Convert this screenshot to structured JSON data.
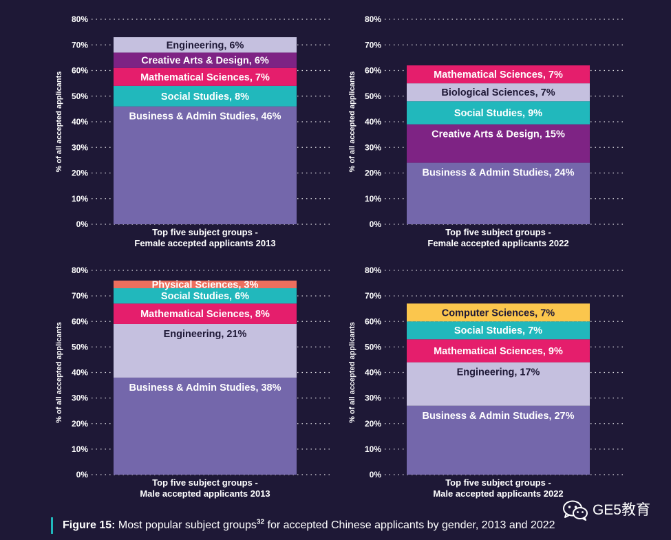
{
  "colors": {
    "background": "#1e1836",
    "business": "#7467ab",
    "engineering": "#c5c0df",
    "creative": "#7e2384",
    "mathematical": "#e51e6c",
    "social": "#21b8bc",
    "biological": "#c5c0df",
    "physical": "#ec6f5e",
    "computer": "#fbc64d",
    "text_light": "#ffffff",
    "text_dark": "#1e1836",
    "caption_bar": "#21b8bc"
  },
  "chart_data": [
    {
      "type": "bar",
      "stacked": true,
      "title": "Top five subject groups -",
      "subtitle": "Female accepted applicants 2013",
      "ylabel": "% of all accepted applicants",
      "ylim": [
        0,
        80
      ],
      "yticks": [
        "0%",
        "10%",
        "20%",
        "30%",
        "40%",
        "50%",
        "60%",
        "70%",
        "80%"
      ],
      "grid": true,
      "segments": [
        {
          "name": "Business & Admin Studies",
          "value": 46,
          "label": "Business & Admin Studies, 46%",
          "color": "#7467ab",
          "text": "light"
        },
        {
          "name": "Social Studies",
          "value": 8,
          "label": "Social Studies, 8%",
          "color": "#21b8bc",
          "text": "light"
        },
        {
          "name": "Mathematical Sciences",
          "value": 7,
          "label": "Mathematical Sciences, 7%",
          "color": "#e51e6c",
          "text": "light"
        },
        {
          "name": "Creative Arts & Design",
          "value": 6,
          "label": "Creative Arts & Design, 6%",
          "color": "#7e2384",
          "text": "light"
        },
        {
          "name": "Engineering",
          "value": 6,
          "label": "Engineering, 6%",
          "color": "#c5c0df",
          "text": "dark"
        }
      ]
    },
    {
      "type": "bar",
      "stacked": true,
      "title": "Top five subject groups -",
      "subtitle": "Female accepted applicants 2022",
      "ylabel": "% of all accepted applicants",
      "ylim": [
        0,
        80
      ],
      "yticks": [
        "0%",
        "10%",
        "20%",
        "30%",
        "40%",
        "50%",
        "60%",
        "70%",
        "80%"
      ],
      "grid": true,
      "segments": [
        {
          "name": "Business & Admin Studies",
          "value": 24,
          "label": "Business & Admin Studies, 24%",
          "color": "#7467ab",
          "text": "light"
        },
        {
          "name": "Creative Arts & Design",
          "value": 15,
          "label": "Creative Arts & Design, 15%",
          "color": "#7e2384",
          "text": "light"
        },
        {
          "name": "Social Studies",
          "value": 9,
          "label": "Social Studies, 9%",
          "color": "#21b8bc",
          "text": "light"
        },
        {
          "name": "Biological Sciences",
          "value": 7,
          "label": "Biological Sciences, 7%",
          "color": "#c5c0df",
          "text": "dark"
        },
        {
          "name": "Mathematical Sciences",
          "value": 7,
          "label": "Mathematical Sciences, 7%",
          "color": "#e51e6c",
          "text": "light"
        }
      ]
    },
    {
      "type": "bar",
      "stacked": true,
      "title": "Top five subject groups -",
      "subtitle": "Male accepted applicants 2013",
      "ylabel": "% of all accepted applicants",
      "ylim": [
        0,
        80
      ],
      "yticks": [
        "0%",
        "10%",
        "20%",
        "30%",
        "40%",
        "50%",
        "60%",
        "70%",
        "80%"
      ],
      "grid": true,
      "segments": [
        {
          "name": "Business & Admin Studies",
          "value": 38,
          "label": "Business & Admin Studies, 38%",
          "color": "#7467ab",
          "text": "light"
        },
        {
          "name": "Engineering",
          "value": 21,
          "label": "Engineering, 21%",
          "color": "#c5c0df",
          "text": "dark"
        },
        {
          "name": "Mathematical Sciences",
          "value": 8,
          "label": "Mathematical Sciences, 8%",
          "color": "#e51e6c",
          "text": "light"
        },
        {
          "name": "Social Studies",
          "value": 6,
          "label": "Social Studies, 6%",
          "color": "#21b8bc",
          "text": "light"
        },
        {
          "name": "Physical Sciences",
          "value": 3,
          "label": "Physical Sciences, 3%",
          "color": "#ec6f5e",
          "text": "light"
        }
      ]
    },
    {
      "type": "bar",
      "stacked": true,
      "title": "Top five subject groups -",
      "subtitle": "Male accepted applicants 2022",
      "ylabel": "% of all accepted applicants",
      "ylim": [
        0,
        80
      ],
      "yticks": [
        "0%",
        "10%",
        "20%",
        "30%",
        "40%",
        "50%",
        "60%",
        "70%",
        "80%"
      ],
      "grid": true,
      "segments": [
        {
          "name": "Business & Admin Studies",
          "value": 27,
          "label": "Business & Admin Studies, 27%",
          "color": "#7467ab",
          "text": "light"
        },
        {
          "name": "Engineering",
          "value": 17,
          "label": "Engineering, 17%",
          "color": "#c5c0df",
          "text": "dark"
        },
        {
          "name": "Mathematical Sciences",
          "value": 9,
          "label": "Mathematical Sciences, 9%",
          "color": "#e51e6c",
          "text": "light"
        },
        {
          "name": "Social Studies",
          "value": 7,
          "label": "Social Studies, 7%",
          "color": "#21b8bc",
          "text": "light"
        },
        {
          "name": "Computer Sciences",
          "value": 7,
          "label": "Computer Sciences, 7%",
          "color": "#fbc64d",
          "text": "dark"
        }
      ]
    }
  ],
  "caption": {
    "label": "Figure 15:",
    "text": " Most popular subject groups",
    "superscript": "32",
    "text_after": " for accepted Chinese applicants by gender, 2013 and 2022"
  },
  "watermark": {
    "text": "GE5教育",
    "icon": "wechat-icon"
  }
}
